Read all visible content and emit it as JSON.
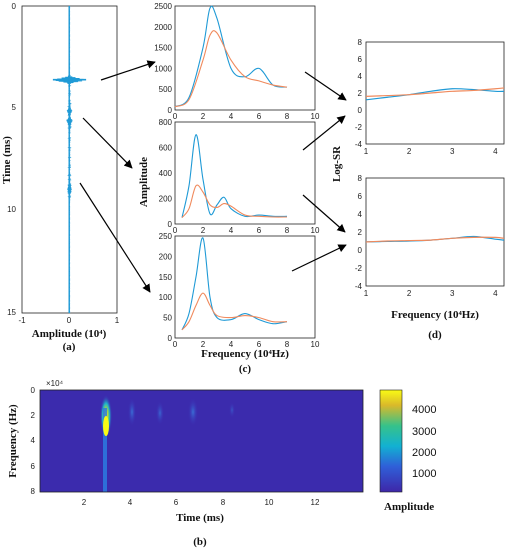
{
  "panel_labels": {
    "a": "(a)",
    "b": "(b)",
    "c": "(c)",
    "d": "(d)"
  },
  "colors": {
    "blue": "#1f9ad6",
    "orange": "#f08a5d",
    "axis": "#222222",
    "arrow": "#000000"
  },
  "panel_a": {
    "ylabel": "Time (ms)",
    "xlabel": "Amplitude (10⁴)",
    "yticks": [
      "0",
      "5",
      "10",
      "15"
    ],
    "xticks": [
      "-1",
      "0",
      "1"
    ]
  },
  "panel_b": {
    "ylabel": "Frequency (Hz)",
    "xlabel": "Time (ms)",
    "multiplier": "×10⁴",
    "yticks": [
      "0",
      "2",
      "4",
      "6",
      "8"
    ],
    "xticks": [
      "2",
      "4",
      "6",
      "8",
      "10",
      "12"
    ],
    "colorbar_ticks": [
      "4000",
      "3000",
      "2000",
      "1000"
    ],
    "colorbar_label": "Amplitude"
  },
  "panel_c": {
    "ylabel": "Amplitude",
    "xlabel": "Frequency (10⁴Hz)",
    "xticks": [
      "0",
      "2",
      "4",
      "6",
      "8",
      "10"
    ],
    "yticks_top": [
      "0",
      "500",
      "1000",
      "1500",
      "2000",
      "2500"
    ],
    "yticks_mid": [
      "0",
      "200",
      "400",
      "600",
      "800"
    ],
    "yticks_bot": [
      "0",
      "50",
      "100",
      "150",
      "200",
      "250"
    ]
  },
  "panel_d": {
    "ylabel": "Log-SR",
    "xlabel": "Frequency (10⁴Hz)",
    "yticks": [
      "-4",
      "-2",
      "0",
      "2",
      "4",
      "6",
      "8"
    ],
    "xticks": [
      "1",
      "2",
      "3",
      "4"
    ]
  },
  "chart_data": [
    {
      "type": "line",
      "panel": "a",
      "x_label": "Amplitude (10^4)",
      "y_label": "Time (ms)",
      "ylim": [
        0,
        15
      ],
      "xlim": [
        -1,
        1
      ],
      "series": [
        {
          "values_desc": "seismic trace with strong arrivals",
          "events_ms": [
            3.6,
            5.4,
            8.8
          ],
          "event_amplitudes": [
            0.35,
            0.12,
            0.06
          ]
        }
      ]
    },
    {
      "type": "heatmap",
      "panel": "b",
      "x_label": "Time (ms)",
      "y_label": "Frequency (Hz)",
      "xlim": [
        0,
        14
      ],
      "ylim": [
        0,
        8
      ],
      "colorbar_range": [
        0,
        4500
      ],
      "peak": {
        "time_ms": 2.7,
        "frequency_x1e4": 2.6,
        "amplitude": 4300
      }
    },
    {
      "type": "line",
      "panel": "c-top",
      "x": [
        0,
        1,
        2,
        2.5,
        3,
        4,
        5,
        6,
        7,
        8
      ],
      "series": [
        {
          "color": "blue",
          "values": [
            80,
            300,
            1500,
            2450,
            2200,
            1000,
            800,
            1000,
            600,
            550
          ]
        },
        {
          "color": "orange",
          "values": [
            80,
            250,
            1200,
            1800,
            1850,
            1200,
            800,
            700,
            600,
            550
          ]
        }
      ],
      "xlim": [
        0,
        10
      ],
      "ylim": [
        0,
        2500
      ]
    },
    {
      "type": "line",
      "panel": "c-mid",
      "x": [
        0.5,
        1,
        1.5,
        2,
        2.5,
        3,
        3.5,
        4,
        5,
        6,
        7,
        8
      ],
      "series": [
        {
          "color": "blue",
          "values": [
            50,
            300,
            700,
            350,
            80,
            150,
            210,
            120,
            60,
            70,
            60,
            60
          ]
        },
        {
          "color": "orange",
          "values": [
            50,
            120,
            300,
            250,
            150,
            130,
            160,
            140,
            70,
            60,
            55,
            55
          ]
        }
      ],
      "xlim": [
        0,
        10
      ],
      "ylim": [
        0,
        800
      ]
    },
    {
      "type": "line",
      "panel": "c-bot",
      "x": [
        0.5,
        1,
        1.5,
        2,
        2.5,
        3,
        4,
        5,
        6,
        7,
        8
      ],
      "series": [
        {
          "color": "blue",
          "values": [
            20,
            60,
            150,
            245,
            100,
            50,
            45,
            60,
            45,
            35,
            40
          ]
        },
        {
          "color": "orange",
          "values": [
            20,
            40,
            80,
            110,
            80,
            55,
            50,
            55,
            50,
            40,
            40
          ]
        }
      ],
      "xlim": [
        0,
        10
      ],
      "ylim": [
        0,
        250
      ]
    },
    {
      "type": "line",
      "panel": "d-top",
      "x": [
        1,
        1.5,
        2,
        2.5,
        3,
        3.5,
        4,
        4.2
      ],
      "series": [
        {
          "color": "blue",
          "values": [
            1.2,
            1.5,
            1.8,
            2.2,
            2.5,
            2.4,
            2.2,
            2.2
          ]
        },
        {
          "color": "orange",
          "values": [
            1.6,
            1.7,
            1.8,
            2.0,
            2.2,
            2.3,
            2.5,
            2.6
          ]
        }
      ],
      "xlim": [
        1,
        4.2
      ],
      "ylim": [
        -4,
        8
      ]
    },
    {
      "type": "line",
      "panel": "d-bot",
      "x": [
        1,
        1.5,
        2,
        2.5,
        3,
        3.5,
        4,
        4.2
      ],
      "series": [
        {
          "color": "blue",
          "values": [
            0.9,
            0.95,
            1.0,
            1.1,
            1.3,
            1.5,
            1.2,
            1.1
          ]
        },
        {
          "color": "orange",
          "values": [
            0.9,
            1.0,
            1.05,
            1.1,
            1.3,
            1.4,
            1.4,
            1.3
          ]
        }
      ],
      "xlim": [
        1,
        4.2
      ],
      "ylim": [
        -4,
        8
      ]
    }
  ]
}
